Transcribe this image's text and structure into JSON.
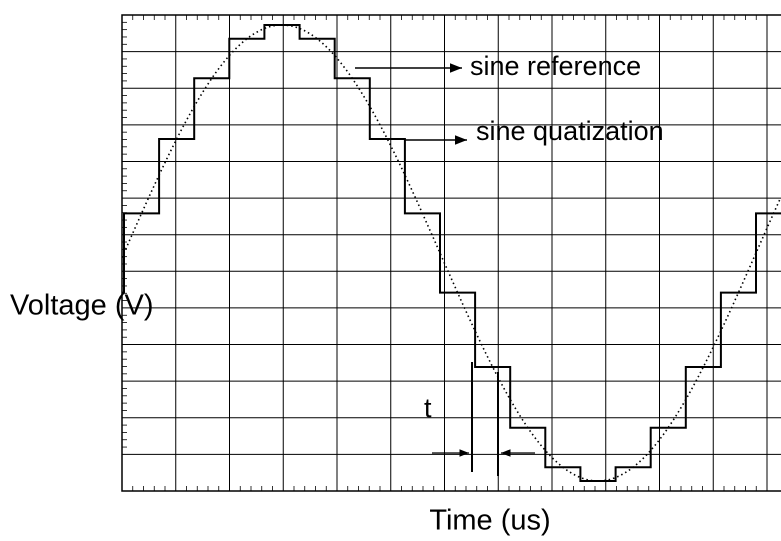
{
  "axes": {
    "y_label": "Voltage (V)",
    "x_label": "Time (us)"
  },
  "annotations": {
    "reference": "sine reference",
    "quantization": "sine quatization",
    "interval": "t"
  }
}
